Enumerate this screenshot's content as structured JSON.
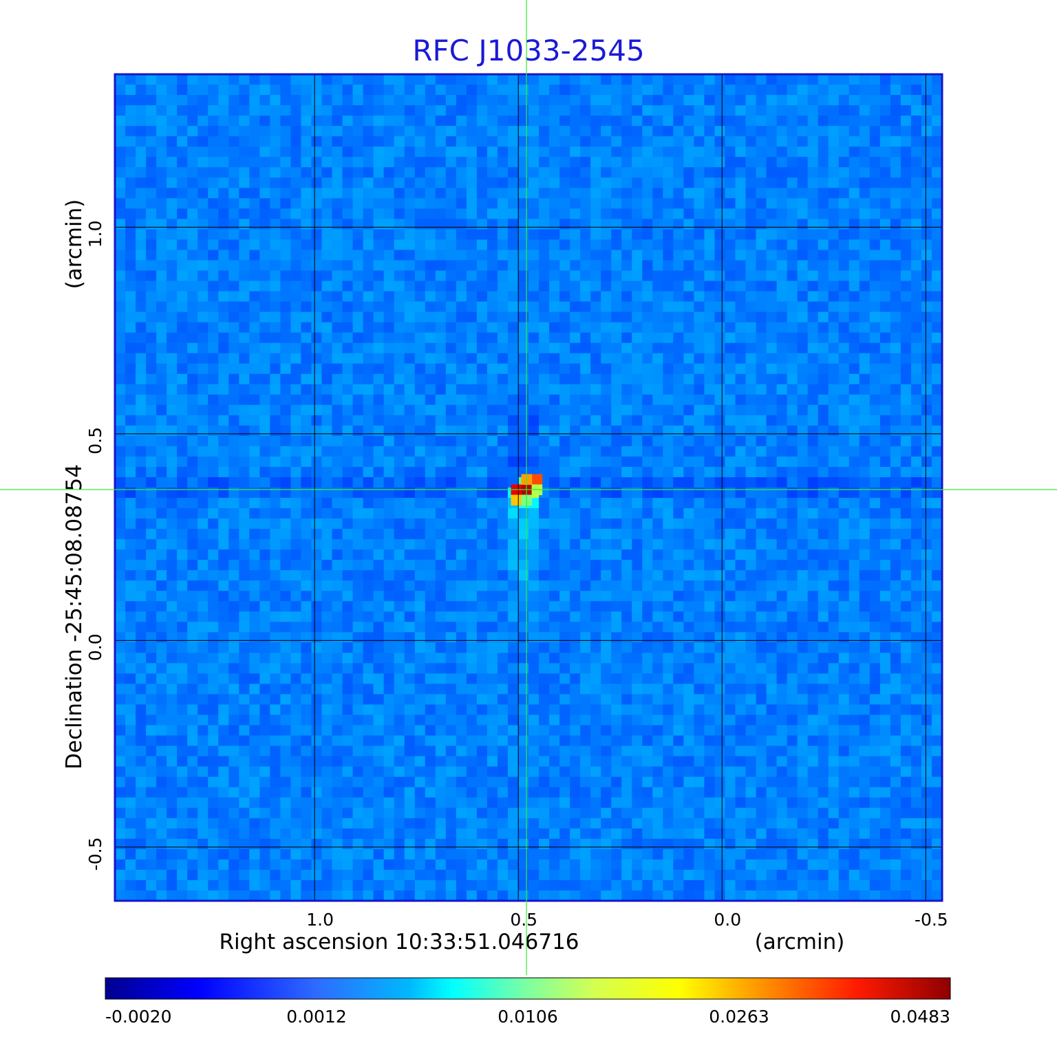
{
  "chart_data": {
    "type": "heatmap",
    "title": "RFC J1033-2545",
    "xlabel": "Right ascension  10:33:51.046716",
    "xunit": "(arcmin)",
    "ylabel": "Declination  -25:45:08.08754",
    "yunit": "(arcmin)",
    "xlim": [
      1.49,
      -0.54
    ],
    "ylim": [
      -0.63,
      1.37
    ],
    "x_ticks": [
      {
        "value": 1.0,
        "label": "1.0"
      },
      {
        "value": 0.5,
        "label": "0.5"
      },
      {
        "value": 0.0,
        "label": "0.0"
      },
      {
        "value": -0.5,
        "label": "-0.5"
      }
    ],
    "y_ticks": [
      {
        "value": 1.0,
        "label": "1.0"
      },
      {
        "value": 0.5,
        "label": "0.5"
      },
      {
        "value": 0.0,
        "label": "0.0"
      },
      {
        "value": -0.5,
        "label": "-0.5"
      }
    ],
    "grid": true,
    "crosshair": {
      "x": 0.48,
      "y": 0.365,
      "color": "#33ee33"
    },
    "peak": {
      "x": 0.48,
      "y": 0.365,
      "value": 0.0483
    },
    "colormap": "jet",
    "colorbar_ticks": [
      {
        "value": -0.002,
        "label": "-0.0020"
      },
      {
        "value": 0.0012,
        "label": "0.0012"
      },
      {
        "value": 0.0106,
        "label": "0.0106"
      },
      {
        "value": 0.0263,
        "label": "0.0263"
      },
      {
        "value": 0.0483,
        "label": "0.0483"
      }
    ],
    "colors": {
      "title": "#1a1ad6",
      "frame": "#1616c8",
      "grid": "#000000"
    }
  }
}
